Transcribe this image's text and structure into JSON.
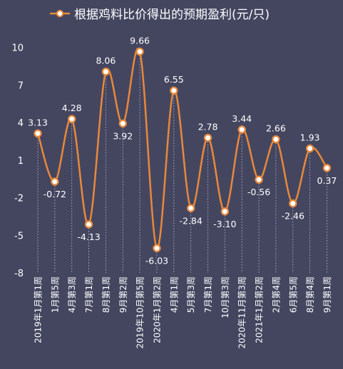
{
  "colors": {
    "background": "#444660",
    "line": "#E8883A",
    "marker_fill": "#FFFFFF",
    "text": "#FFFFFF",
    "guide": "#C9CBD8"
  },
  "chart_data": {
    "type": "line",
    "title": "根据鸡料比价得出的预期盈利(元/只)",
    "legend_position": "top",
    "grid": false,
    "smooth": true,
    "ylim": [
      -8,
      11
    ],
    "yticks": [
      10,
      7,
      4,
      1,
      -2,
      -5,
      -8
    ],
    "categories": [
      "2019年1月第1周",
      "1月第5周",
      "4月第3周",
      "7月第1周",
      "8月第1周",
      "9月第2周",
      "2019年10月第5周",
      "2020年1月第2周",
      "4月第1周",
      "5月第3周",
      "7月第1周",
      "10月第3周",
      "2020年11月第3周",
      "2021年1月第2周",
      "2月第4周",
      "6月第5周",
      "8月第4周",
      "9月第1周"
    ],
    "series": [
      {
        "name": "根据鸡料比价得出的预期盈利(元/只)",
        "values": [
          3.13,
          -0.72,
          4.28,
          -4.13,
          8.06,
          3.92,
          9.66,
          -6.03,
          6.55,
          -2.84,
          2.78,
          -3.1,
          3.44,
          -0.56,
          2.66,
          -2.46,
          1.93,
          0.37
        ],
        "labels": [
          "3.13",
          "-0.72",
          "4.28",
          "-4.13",
          "8.06",
          "3.92",
          "9.66",
          "-6.03",
          "6.55",
          "-2.84",
          "2.78",
          "-3.10",
          "3.44",
          "-0.56",
          "2.66",
          "-2.46",
          "1.93",
          "0.37"
        ],
        "label_positions": [
          "above",
          "below",
          "above",
          "below",
          "above",
          "below",
          "above",
          "below",
          "above",
          "below",
          "above",
          "below",
          "above",
          "below",
          "above",
          "below",
          "above",
          "below"
        ]
      }
    ]
  }
}
